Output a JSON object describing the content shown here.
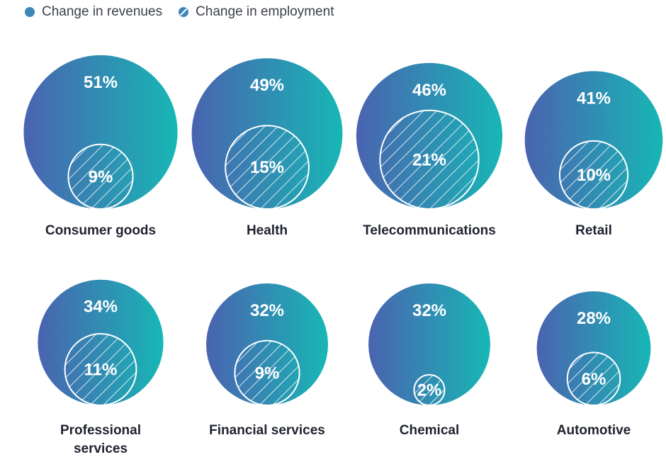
{
  "legend": {
    "revenues_label": "Change in revenues",
    "employment_label": "Change in employment"
  },
  "colors": {
    "gradient_start": "#4a63b0",
    "gradient_end": "#17b7b5",
    "label_text": "#1f2230",
    "legend_dot": "#3f86b8"
  },
  "chart_data": {
    "type": "bubble",
    "title": "",
    "series": [
      {
        "name": "Change in revenues",
        "unit": "%"
      },
      {
        "name": "Change in employment",
        "unit": "%"
      }
    ],
    "categories": [
      {
        "label": [
          "Consumer goods"
        ],
        "revenues": 51,
        "employment": 9
      },
      {
        "label": [
          "Health"
        ],
        "revenues": 49,
        "employment": 15
      },
      {
        "label": [
          "Telecommunications"
        ],
        "revenues": 46,
        "employment": 21
      },
      {
        "label": [
          "Retail"
        ],
        "revenues": 41,
        "employment": 10
      },
      {
        "label": [
          "Professional",
          "services"
        ],
        "revenues": 34,
        "employment": 11
      },
      {
        "label": [
          "Financial services"
        ],
        "revenues": 32,
        "employment": 9
      },
      {
        "label": [
          "Chemical"
        ],
        "revenues": 32,
        "employment": 2
      },
      {
        "label": [
          "Automotive"
        ],
        "revenues": 28,
        "employment": 6
      }
    ]
  }
}
